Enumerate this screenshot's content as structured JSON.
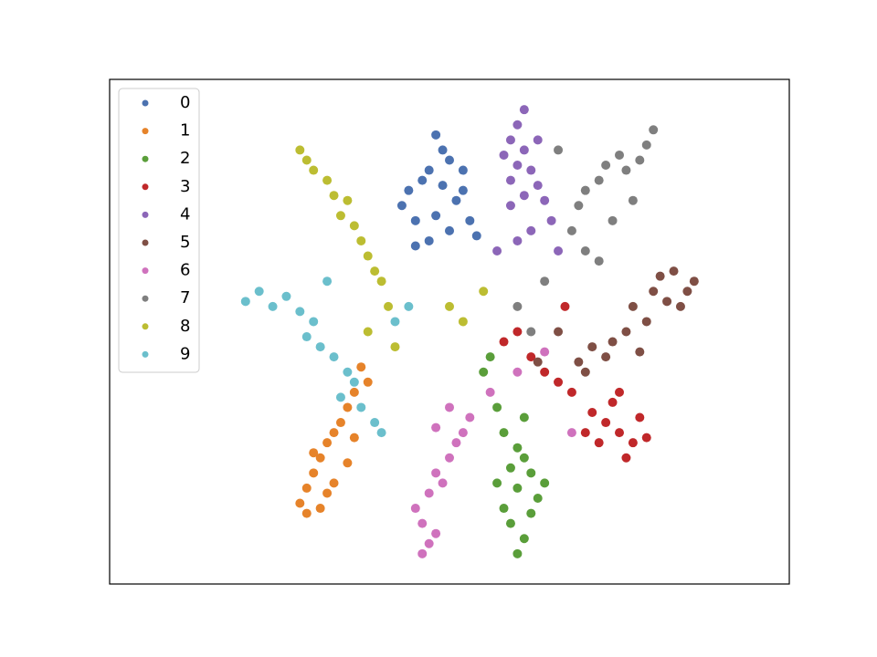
{
  "chart_data": {
    "type": "scatter",
    "xlim": [
      0,
      100
    ],
    "ylim": [
      0,
      100
    ],
    "legend": "upper left",
    "series": [
      {
        "name": "0",
        "color": "#4c72b0",
        "x": [
          48,
          49,
          50,
          47,
          46,
          44,
          43,
          45,
          48,
          51,
          52,
          53,
          50,
          47,
          45,
          49,
          52,
          54
        ],
        "y": [
          89,
          86,
          84,
          82,
          80,
          78,
          75,
          72,
          73,
          76,
          78,
          72,
          70,
          68,
          67,
          79,
          82,
          69
        ]
      },
      {
        "name": "1",
        "color": "#e6832a",
        "x": [
          37,
          38,
          36,
          35,
          34,
          33,
          32,
          31,
          30,
          29,
          28,
          29,
          31,
          33,
          35,
          36,
          30,
          32
        ],
        "y": [
          43,
          40,
          38,
          35,
          32,
          30,
          28,
          25,
          22,
          19,
          16,
          14,
          15,
          20,
          24,
          29,
          26,
          18
        ]
      },
      {
        "name": "2",
        "color": "#5a9e3a",
        "x": [
          60,
          61,
          59,
          58,
          62,
          63,
          60,
          57,
          59,
          61,
          62,
          64,
          60,
          58,
          56,
          55,
          57,
          61
        ],
        "y": [
          6,
          9,
          12,
          15,
          14,
          17,
          19,
          20,
          23,
          25,
          22,
          20,
          27,
          30,
          45,
          42,
          35,
          33
        ]
      },
      {
        "name": "3",
        "color": "#c0282a",
        "x": [
          76,
          77,
          75,
          73,
          71,
          74,
          78,
          79,
          72,
          70,
          68,
          66,
          64,
          62,
          58,
          60,
          67,
          75
        ],
        "y": [
          25,
          28,
          30,
          32,
          34,
          36,
          33,
          29,
          28,
          30,
          38,
          40,
          42,
          45,
          48,
          50,
          55,
          38
        ]
      },
      {
        "name": "4",
        "color": "#8c66b8",
        "x": [
          61,
          60,
          59,
          58,
          60,
          62,
          63,
          61,
          59,
          64,
          65,
          62,
          60,
          57,
          66,
          63,
          61,
          59
        ],
        "y": [
          94,
          91,
          88,
          85,
          83,
          82,
          79,
          77,
          75,
          76,
          72,
          70,
          68,
          66,
          66,
          88,
          86,
          80
        ]
      },
      {
        "name": "5",
        "color": "#7f4f45",
        "x": [
          86,
          85,
          83,
          82,
          80,
          79,
          77,
          76,
          74,
          73,
          71,
          70,
          69,
          81,
          84,
          78,
          66,
          63
        ],
        "y": [
          60,
          58,
          62,
          56,
          58,
          52,
          55,
          50,
          48,
          45,
          47,
          42,
          44,
          61,
          55,
          46,
          50,
          44
        ]
      },
      {
        "name": "6",
        "color": "#cf72bd",
        "x": [
          46,
          47,
          48,
          46,
          45,
          47,
          49,
          48,
          50,
          51,
          52,
          53,
          50,
          48,
          56,
          60,
          64,
          68
        ],
        "y": [
          6,
          8,
          10,
          12,
          15,
          18,
          20,
          22,
          25,
          28,
          30,
          33,
          35,
          31,
          38,
          42,
          46,
          30
        ]
      },
      {
        "name": "7",
        "color": "#7f7f7f",
        "x": [
          80,
          79,
          78,
          76,
          75,
          73,
          72,
          70,
          69,
          68,
          70,
          72,
          74,
          77,
          66,
          64,
          60,
          62
        ],
        "y": [
          90,
          87,
          84,
          82,
          85,
          83,
          80,
          78,
          75,
          70,
          66,
          64,
          72,
          76,
          86,
          60,
          55,
          50
        ]
      },
      {
        "name": "8",
        "color": "#bcbd32",
        "x": [
          28,
          29,
          30,
          32,
          33,
          35,
          34,
          36,
          37,
          38,
          39,
          40,
          41,
          38,
          42,
          50,
          52,
          55
        ],
        "y": [
          86,
          84,
          82,
          80,
          77,
          76,
          73,
          71,
          68,
          65,
          62,
          60,
          55,
          50,
          47,
          55,
          52,
          58
        ]
      },
      {
        "name": "9",
        "color": "#6bbfcc",
        "x": [
          20,
          22,
          24,
          26,
          28,
          30,
          29,
          31,
          33,
          35,
          36,
          34,
          37,
          39,
          40,
          42,
          44,
          32
        ],
        "y": [
          56,
          58,
          55,
          57,
          54,
          52,
          49,
          47,
          45,
          42,
          40,
          37,
          35,
          32,
          30,
          52,
          55,
          60
        ]
      }
    ]
  }
}
